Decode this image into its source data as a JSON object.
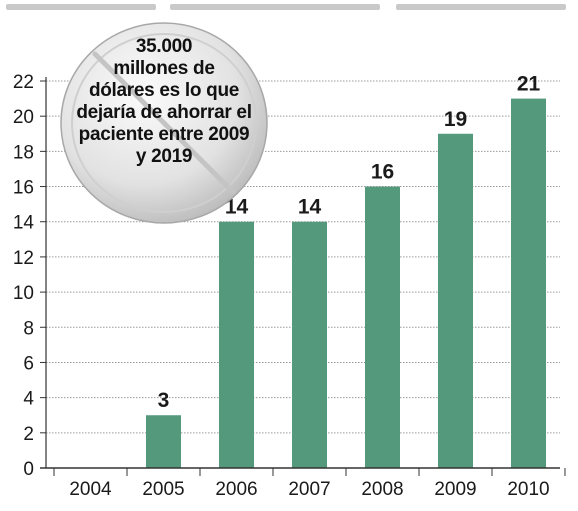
{
  "chart_data": {
    "type": "bar",
    "title": "",
    "xlabel": "",
    "ylabel": "",
    "categories": [
      "2004",
      "2005",
      "2006",
      "2007",
      "2008",
      "2009",
      "2010"
    ],
    "values": [
      null,
      3,
      14,
      14,
      16,
      19,
      21
    ],
    "value_labels": [
      "",
      "3",
      "14",
      "14",
      "16",
      "19",
      "21"
    ],
    "ylim": [
      0,
      22
    ],
    "yticks": [
      0,
      2,
      4,
      6,
      8,
      10,
      12,
      14,
      16,
      18,
      20,
      22
    ],
    "grid": true,
    "bar_color": "#55997c"
  },
  "callout": {
    "lines": [
      "35.000",
      "millones de",
      "dólares es lo que",
      "dejaría de ahorrar el",
      "paciente entre 2009",
      "y 2019"
    ]
  }
}
